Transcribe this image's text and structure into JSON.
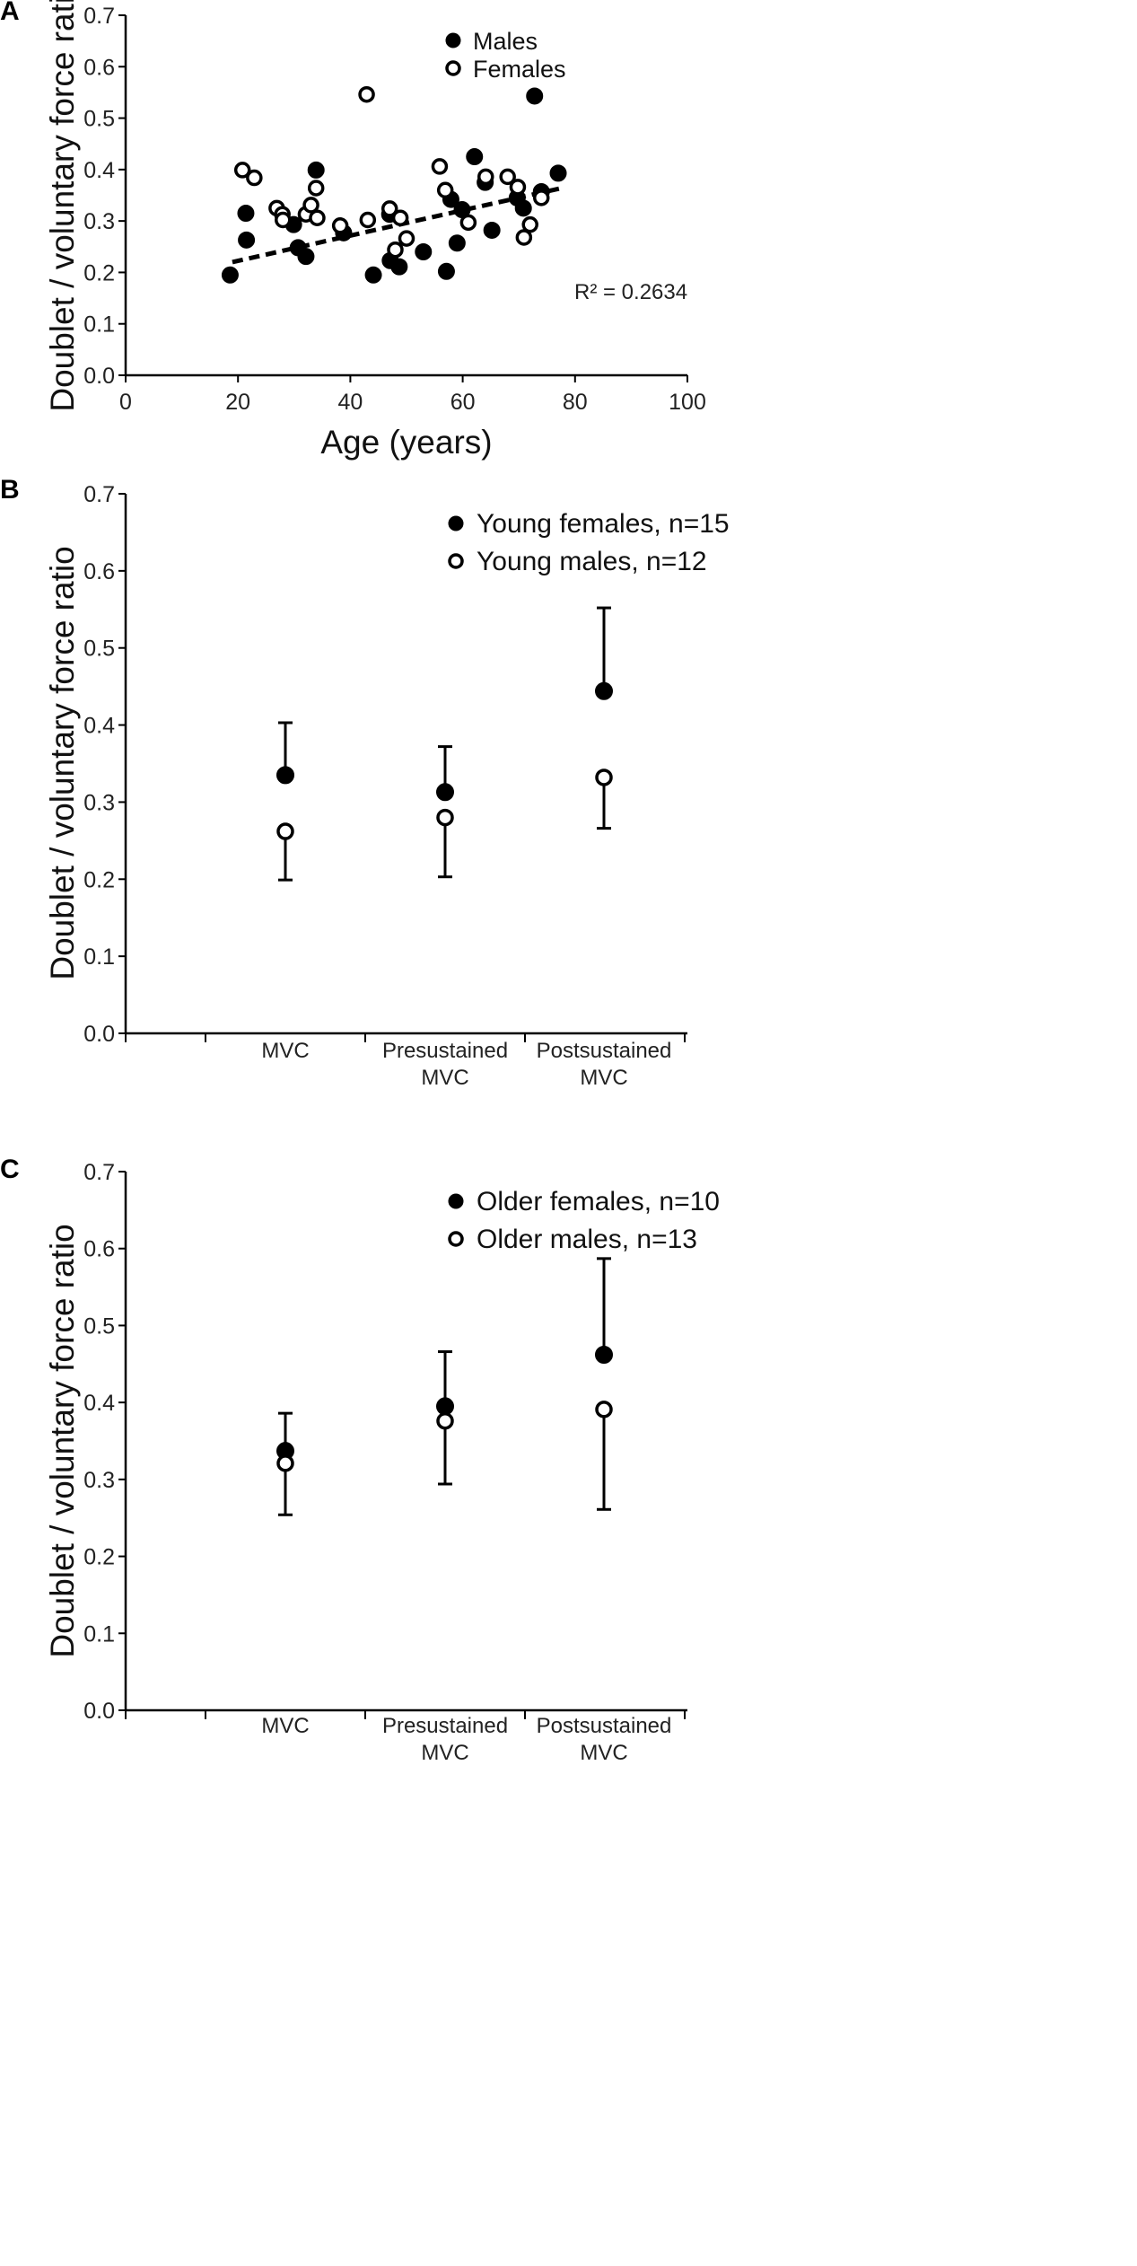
{
  "chart_data": [
    {
      "panel": "A",
      "type": "scatter",
      "xlabel": "Age (years)",
      "ylabel": "Doublet  / voluntary  force ratio",
      "xlim": [
        0,
        100
      ],
      "ylim": [
        0,
        0.7
      ],
      "xticks": [
        0,
        20,
        40,
        60,
        80,
        100
      ],
      "yticks": [
        0.0,
        0.1,
        0.2,
        0.3,
        0.4,
        0.5,
        0.6,
        0.7
      ],
      "annotation": "R² = 0.2634",
      "trendline": {
        "style": "dashed",
        "x": [
          19,
          78
        ],
        "y": [
          0.22,
          0.365
        ]
      },
      "series": [
        {
          "name": "Males",
          "marker": "filled",
          "points": [
            [
              18.6,
              0.195
            ],
            [
              21.4,
              0.315
            ],
            [
              21.5,
              0.263
            ],
            [
              29.9,
              0.293
            ],
            [
              30.7,
              0.248
            ],
            [
              32.1,
              0.231
            ],
            [
              33.9,
              0.399
            ],
            [
              38.8,
              0.277
            ],
            [
              44.1,
              0.195
            ],
            [
              47.0,
              0.313
            ],
            [
              47.1,
              0.223
            ],
            [
              48.7,
              0.211
            ],
            [
              53.0,
              0.24
            ],
            [
              57.1,
              0.202
            ],
            [
              57.9,
              0.342
            ],
            [
              59.0,
              0.257
            ],
            [
              59.9,
              0.322
            ],
            [
              62.1,
              0.425
            ],
            [
              64.0,
              0.375
            ],
            [
              65.2,
              0.282
            ],
            [
              69.7,
              0.345
            ],
            [
              70.8,
              0.325
            ],
            [
              72.8,
              0.543
            ],
            [
              74.0,
              0.357
            ],
            [
              77.0,
              0.393
            ]
          ]
        },
        {
          "name": "Females",
          "marker": "open",
          "points": [
            [
              20.8,
              0.399
            ],
            [
              22.9,
              0.384
            ],
            [
              26.9,
              0.325
            ],
            [
              27.9,
              0.313
            ],
            [
              28.0,
              0.302
            ],
            [
              32.1,
              0.313
            ],
            [
              33.0,
              0.331
            ],
            [
              33.9,
              0.364
            ],
            [
              34.1,
              0.306
            ],
            [
              38.2,
              0.291
            ],
            [
              42.9,
              0.546
            ],
            [
              43.1,
              0.302
            ],
            [
              47.0,
              0.324
            ],
            [
              48.0,
              0.244
            ],
            [
              48.9,
              0.306
            ],
            [
              50.0,
              0.266
            ],
            [
              55.9,
              0.406
            ],
            [
              56.9,
              0.36
            ],
            [
              61.0,
              0.297
            ],
            [
              64.1,
              0.386
            ],
            [
              68.0,
              0.386
            ],
            [
              69.8,
              0.366
            ],
            [
              70.9,
              0.268
            ],
            [
              72.0,
              0.293
            ],
            [
              74.0,
              0.345
            ]
          ]
        }
      ]
    },
    {
      "panel": "B",
      "type": "scatter",
      "ylabel": "Doublet  / voluntary  force ratio",
      "ylim": [
        0,
        0.7
      ],
      "yticks": [
        0.0,
        0.1,
        0.2,
        0.3,
        0.4,
        0.5,
        0.6,
        0.7
      ],
      "categories": [
        [
          "MVC"
        ],
        [
          "Presustained",
          "MVC"
        ],
        [
          "Postsustained",
          "MVC"
        ]
      ],
      "series": [
        {
          "name": "Young females, n=15",
          "marker": "filled",
          "values": [
            0.335,
            0.313,
            0.444
          ],
          "error_upper": [
            0.403,
            0.372,
            0.552
          ],
          "error_lower": null
        },
        {
          "name": "Young males, n=12",
          "marker": "open",
          "values": [
            0.262,
            0.28,
            0.332
          ],
          "error_upper": null,
          "error_lower": [
            0.199,
            0.203,
            0.266
          ]
        }
      ]
    },
    {
      "panel": "C",
      "type": "scatter",
      "ylabel": "Doublet / voluntary  force ratio",
      "ylim": [
        0,
        0.7
      ],
      "yticks": [
        0.0,
        0.1,
        0.2,
        0.3,
        0.4,
        0.5,
        0.6,
        0.7
      ],
      "categories": [
        [
          "MVC"
        ],
        [
          "Presustained",
          "MVC"
        ],
        [
          "Postsustained",
          "MVC"
        ]
      ],
      "series": [
        {
          "name": "Older females, n=10",
          "marker": "filled",
          "values": [
            0.337,
            0.395,
            0.462
          ],
          "error_upper": [
            0.386,
            0.466,
            0.587
          ],
          "error_lower": null
        },
        {
          "name": "Older males, n=13",
          "marker": "open",
          "values": [
            0.321,
            0.376,
            0.391
          ],
          "error_upper": null,
          "error_lower": [
            0.254,
            0.294,
            0.261
          ]
        }
      ]
    }
  ]
}
